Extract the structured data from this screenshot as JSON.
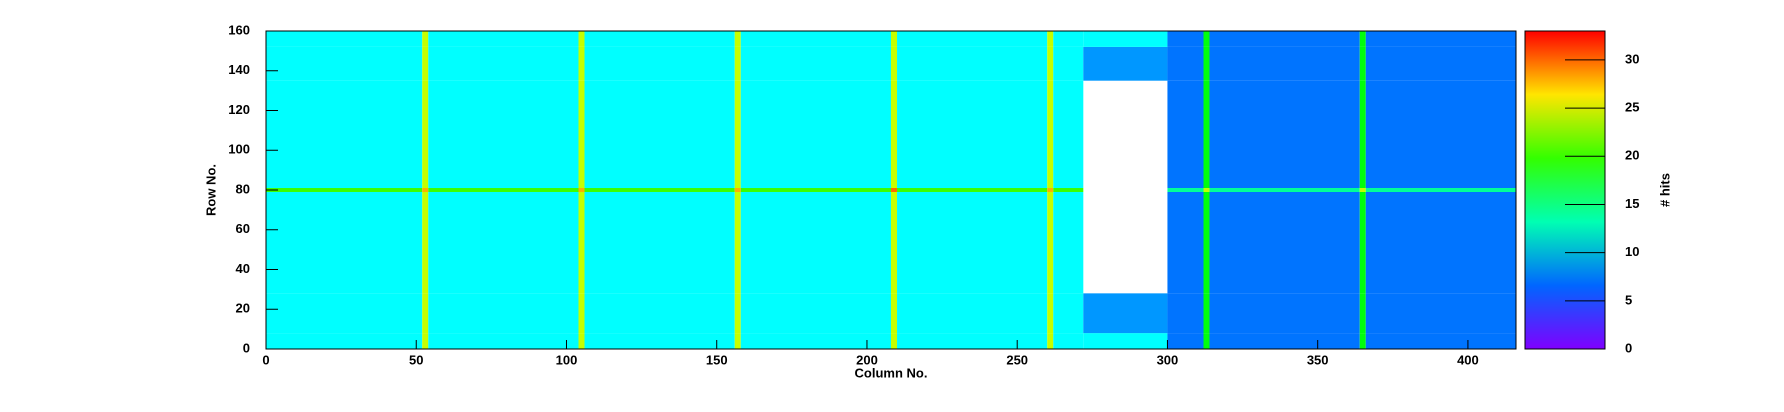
{
  "chart_data": {
    "type": "heatmap",
    "xlabel": "Column No.",
    "ylabel": "Row No.",
    "zlabel": "# hits",
    "xbins": [
      0,
      52,
      54,
      104,
      106,
      156,
      158,
      208,
      210,
      260,
      262,
      272,
      300,
      312,
      314,
      364,
      366,
      416
    ],
    "ybins": [
      0,
      8,
      28,
      40,
      79,
      81,
      135,
      152,
      160
    ],
    "z": [
      [
        11,
        24,
        11,
        24,
        11,
        24,
        11,
        24,
        11,
        24,
        11,
        11,
        7,
        18,
        7,
        18,
        7
      ],
      [
        11,
        24,
        11,
        24,
        11,
        24,
        11,
        24,
        11,
        24,
        11,
        8,
        7,
        18,
        7,
        18,
        7
      ],
      [
        11,
        24,
        11,
        24,
        11,
        24,
        11,
        24,
        11,
        24,
        11,
        null,
        7,
        18,
        7,
        18,
        7
      ],
      [
        11,
        24,
        11,
        24,
        11,
        24,
        11,
        24,
        11,
        24,
        11,
        null,
        7,
        18,
        7,
        18,
        7
      ],
      [
        20,
        28,
        20,
        28,
        20,
        28,
        20,
        30,
        20,
        28,
        20,
        null,
        14,
        24,
        14,
        24,
        14
      ],
      [
        11,
        24,
        11,
        24,
        11,
        24,
        11,
        24,
        11,
        24,
        11,
        null,
        7,
        18,
        7,
        18,
        7
      ],
      [
        11,
        24,
        11,
        24,
        11,
        24,
        11,
        24,
        11,
        24,
        11,
        8,
        7,
        18,
        7,
        18,
        7
      ],
      [
        11,
        24,
        11,
        24,
        11,
        24,
        11,
        24,
        11,
        24,
        11,
        11,
        7,
        18,
        7,
        18,
        7
      ]
    ],
    "xlim": [
      0,
      416
    ],
    "xticks": [
      0,
      50,
      100,
      150,
      200,
      250,
      300,
      350,
      400
    ],
    "ylim": [
      0,
      160
    ],
    "yticks": [
      0,
      20,
      40,
      60,
      80,
      100,
      120,
      140,
      160
    ],
    "zlim": [
      0,
      33
    ],
    "zticks": [
      0,
      5,
      10,
      15,
      20,
      25,
      30
    ]
  }
}
